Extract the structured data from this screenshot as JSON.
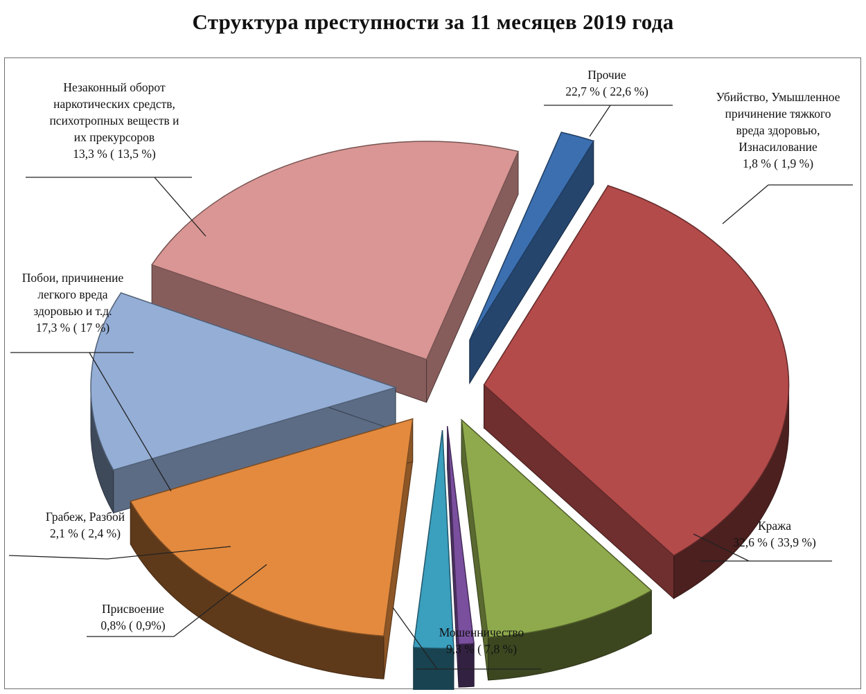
{
  "title": "Структура преступности за 11 месяцев 2019 года",
  "colors": {
    "krazha": "#b34b4a",
    "moshennichestvo": "#8faa4c",
    "prisvoenie": "#7a4f9e",
    "grabezh": "#3b9fbe",
    "poboi": "#e38a3e",
    "narko": "#94aed6",
    "prochie": "#d99694",
    "ubiistvo": "#3b6fb0"
  },
  "chart_data": {
    "type": "pie",
    "title": "Структура преступности за 11 месяцев 2019 года",
    "style": "3d exploded pie",
    "slices": [
      {
        "key": "krazha",
        "name": "Кража",
        "value": 32.6,
        "prev_value": 33.9,
        "label": "32,6 % ( 33,9 %)"
      },
      {
        "key": "moshennichestvo",
        "name": "Мошенничество",
        "value": 9.3,
        "prev_value": 7.8,
        "label": "9,3 % ( 7,8 %)"
      },
      {
        "key": "prisvoenie",
        "name": "Присвоение",
        "value": 0.8,
        "prev_value": 0.9,
        "label": "0,8% ( 0,9%)"
      },
      {
        "key": "grabezh",
        "name": "Грабеж, Разбой",
        "value": 2.1,
        "prev_value": 2.4,
        "label": "2,1 % ( 2,4 %)"
      },
      {
        "key": "poboi",
        "name": "Побои, причинение легкого вреда здоровью и т.д.",
        "value": 17.3,
        "prev_value": 17,
        "label": "17,3 % ( 17 %)"
      },
      {
        "key": "narko",
        "name": "Незаконный оборот наркотических средств, психотропных веществ и их прекурсоров",
        "value": 13.3,
        "prev_value": 13.5,
        "label": "13,3 % ( 13,5 %)"
      },
      {
        "key": "prochie",
        "name": "Прочие",
        "value": 22.7,
        "prev_value": 22.6,
        "label": "22,7 % ( 22,6 %)"
      },
      {
        "key": "ubiistvo",
        "name": "Убийство, Умышленное причинение тяжкого вреда здоровью, Изнасилование",
        "value": 1.8,
        "prev_value": 1.9,
        "label": "1,8 % ( 1,9 %)"
      }
    ]
  },
  "labels": {
    "narko": {
      "lines": [
        "Незаконный оборот",
        "наркотических средств,",
        "психотропных веществ и",
        "их прекурсоров"
      ],
      "value": "13,3 % ( 13,5 %)"
    },
    "prochie": {
      "lines": [
        "Прочие"
      ],
      "value": "22,7 % ( 22,6 %)"
    },
    "ubiistvo": {
      "lines": [
        "Убийство, Умышленное",
        "причинение тяжкого",
        "вреда здоровью,",
        "Изнасилование"
      ],
      "value": "1,8 % ( 1,9 %)"
    },
    "poboi": {
      "lines": [
        "Побои, причинение",
        "легкого вреда",
        "здоровью  и т.д."
      ],
      "value": "17,3 % ( 17 %)"
    },
    "grabezh": {
      "lines": [
        "Грабеж, Разбой"
      ],
      "value": "2,1 % ( 2,4 %)"
    },
    "prisvoenie": {
      "lines": [
        "Присвоение"
      ],
      "value": "0,8% ( 0,9%)"
    },
    "moshennichestvo": {
      "lines": [
        "Мошенничество"
      ],
      "value": "9,3 % ( 7,8 %)"
    },
    "krazha": {
      "lines": [
        "Кража"
      ],
      "value": "32,6 % ( 33,9 %)"
    }
  }
}
